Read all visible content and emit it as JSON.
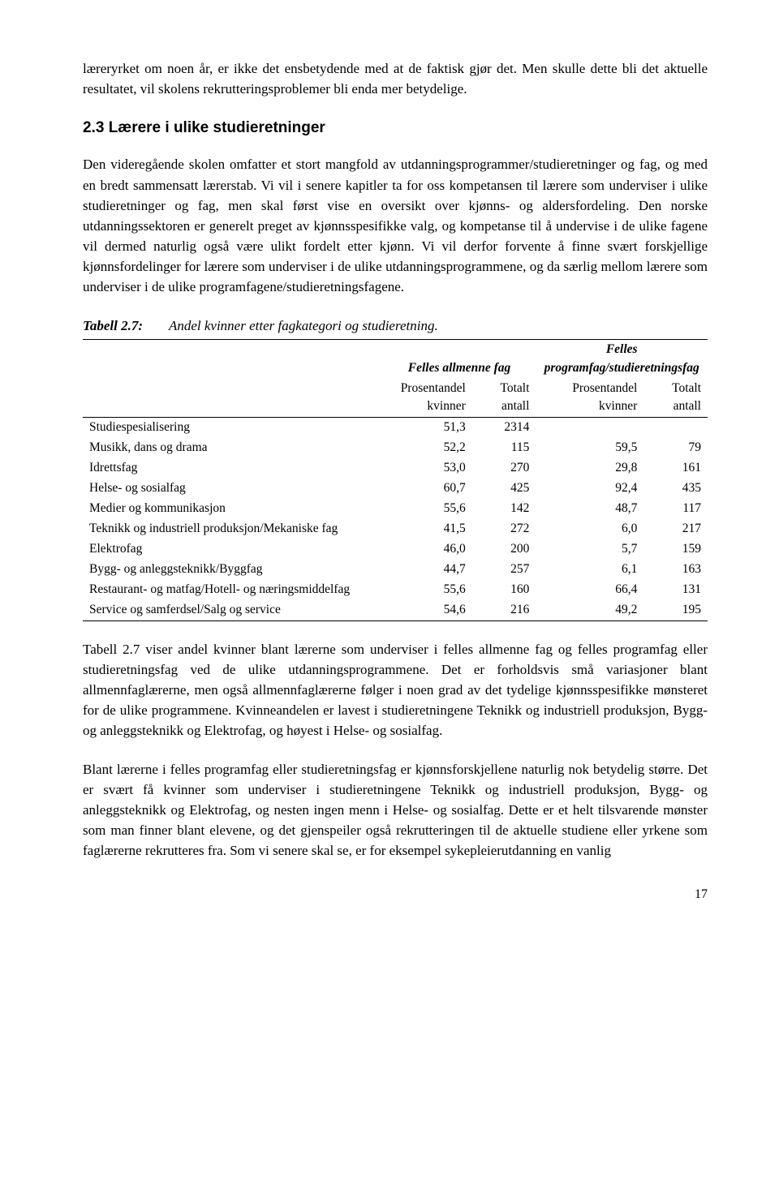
{
  "intro_paragraph": "læreryrket om noen år, er ikke det ensbetydende med at de faktisk gjør det. Men skulle dette bli det aktuelle resultatet, vil skolens rekrutteringsproblemer bli enda mer betydelige.",
  "heading": "2.3   Lærere i ulike studieretninger",
  "section_paragraph": "Den videregående skolen omfatter et stort mangfold av utdanningsprogrammer/studieretninger og fag, og med en bredt sammensatt lærerstab. Vi vil i senere kapitler ta for oss kompetansen til lærere som underviser i ulike studieretninger og fag, men skal først vise en oversikt over kjønns- og aldersfordeling. Den norske utdanningssektoren er generelt preget av kjønnsspesifikke valg, og kompetanse til å undervise i de ulike fagene vil dermed naturlig også være ulikt fordelt etter kjønn. Vi vil derfor forvente å finne svært forskjellige kjønnsfordelinger for lærere som underviser i de ulike utdanningsprogrammene, og da særlig mellom lærere som underviser i de ulike programfagene/studieretningsfagene.",
  "table": {
    "caption_label": "Tabell 2.7:",
    "caption_text": "Andel kvinner etter fagkategori og studieretning.",
    "group1": "Felles allmenne fag",
    "group2": "Felles programfag/studieretningsfag",
    "col_pct": "Prosentandel kvinner",
    "col_n": "Totalt antall",
    "rows": [
      {
        "label": "Studiespesialisering",
        "pct1": "51,3",
        "n1": "2314",
        "pct2": "",
        "n2": ""
      },
      {
        "label": "Musikk, dans og drama",
        "pct1": "52,2",
        "n1": "115",
        "pct2": "59,5",
        "n2": "79"
      },
      {
        "label": "Idrettsfag",
        "pct1": "53,0",
        "n1": "270",
        "pct2": "29,8",
        "n2": "161"
      },
      {
        "label": "Helse- og sosialfag",
        "pct1": "60,7",
        "n1": "425",
        "pct2": "92,4",
        "n2": "435"
      },
      {
        "label": "Medier og kommunikasjon",
        "pct1": "55,6",
        "n1": "142",
        "pct2": "48,7",
        "n2": "117"
      },
      {
        "label": "Teknikk og industriell produksjon/Mekaniske fag",
        "pct1": "41,5",
        "n1": "272",
        "pct2": "6,0",
        "n2": "217"
      },
      {
        "label": "Elektrofag",
        "pct1": "46,0",
        "n1": "200",
        "pct2": "5,7",
        "n2": "159"
      },
      {
        "label": "Bygg- og anleggsteknikk/Byggfag",
        "pct1": "44,7",
        "n1": "257",
        "pct2": "6,1",
        "n2": "163"
      },
      {
        "label": "Restaurant- og matfag/Hotell- og næringsmiddelfag",
        "pct1": "55,6",
        "n1": "160",
        "pct2": "66,4",
        "n2": "131"
      },
      {
        "label": "Service og samferdsel/Salg og service",
        "pct1": "54,6",
        "n1": "216",
        "pct2": "49,2",
        "n2": "195"
      }
    ],
    "col_widths": [
      "47%",
      "14%",
      "10%",
      "14%",
      "10%"
    ]
  },
  "after_para1": "Tabell 2.7 viser andel kvinner blant lærerne som underviser i felles allmenne fag og felles programfag eller studieretningsfag ved de ulike utdanningsprogrammene. Det er forholdsvis små variasjoner blant allmennfaglærerne, men også allmennfaglærerne følger i noen grad av det tydelige kjønnsspesifikke mønsteret for de ulike programmene. Kvinneandelen er lavest i studieretningene Teknikk og industriell produksjon, Bygg- og anleggsteknikk og Elektrofag, og høyest i Helse- og sosialfag.",
  "after_para2": "Blant lærerne i felles programfag eller studieretningsfag er kjønnsforskjellene naturlig nok betydelig større. Det er svært få kvinner som underviser i studieretningene Teknikk og industriell produksjon, Bygg- og anleggsteknikk og Elektrofag, og nesten ingen menn i Helse- og sosialfag. Dette er et helt tilsvarende mønster som man finner blant elevene, og det gjenspeiler også rekrutteringen til de aktuelle studiene eller yrkene som faglærerne rekrutteres fra. Som vi senere skal se, er for eksempel sykepleierutdanning en vanlig",
  "page_number": "17"
}
